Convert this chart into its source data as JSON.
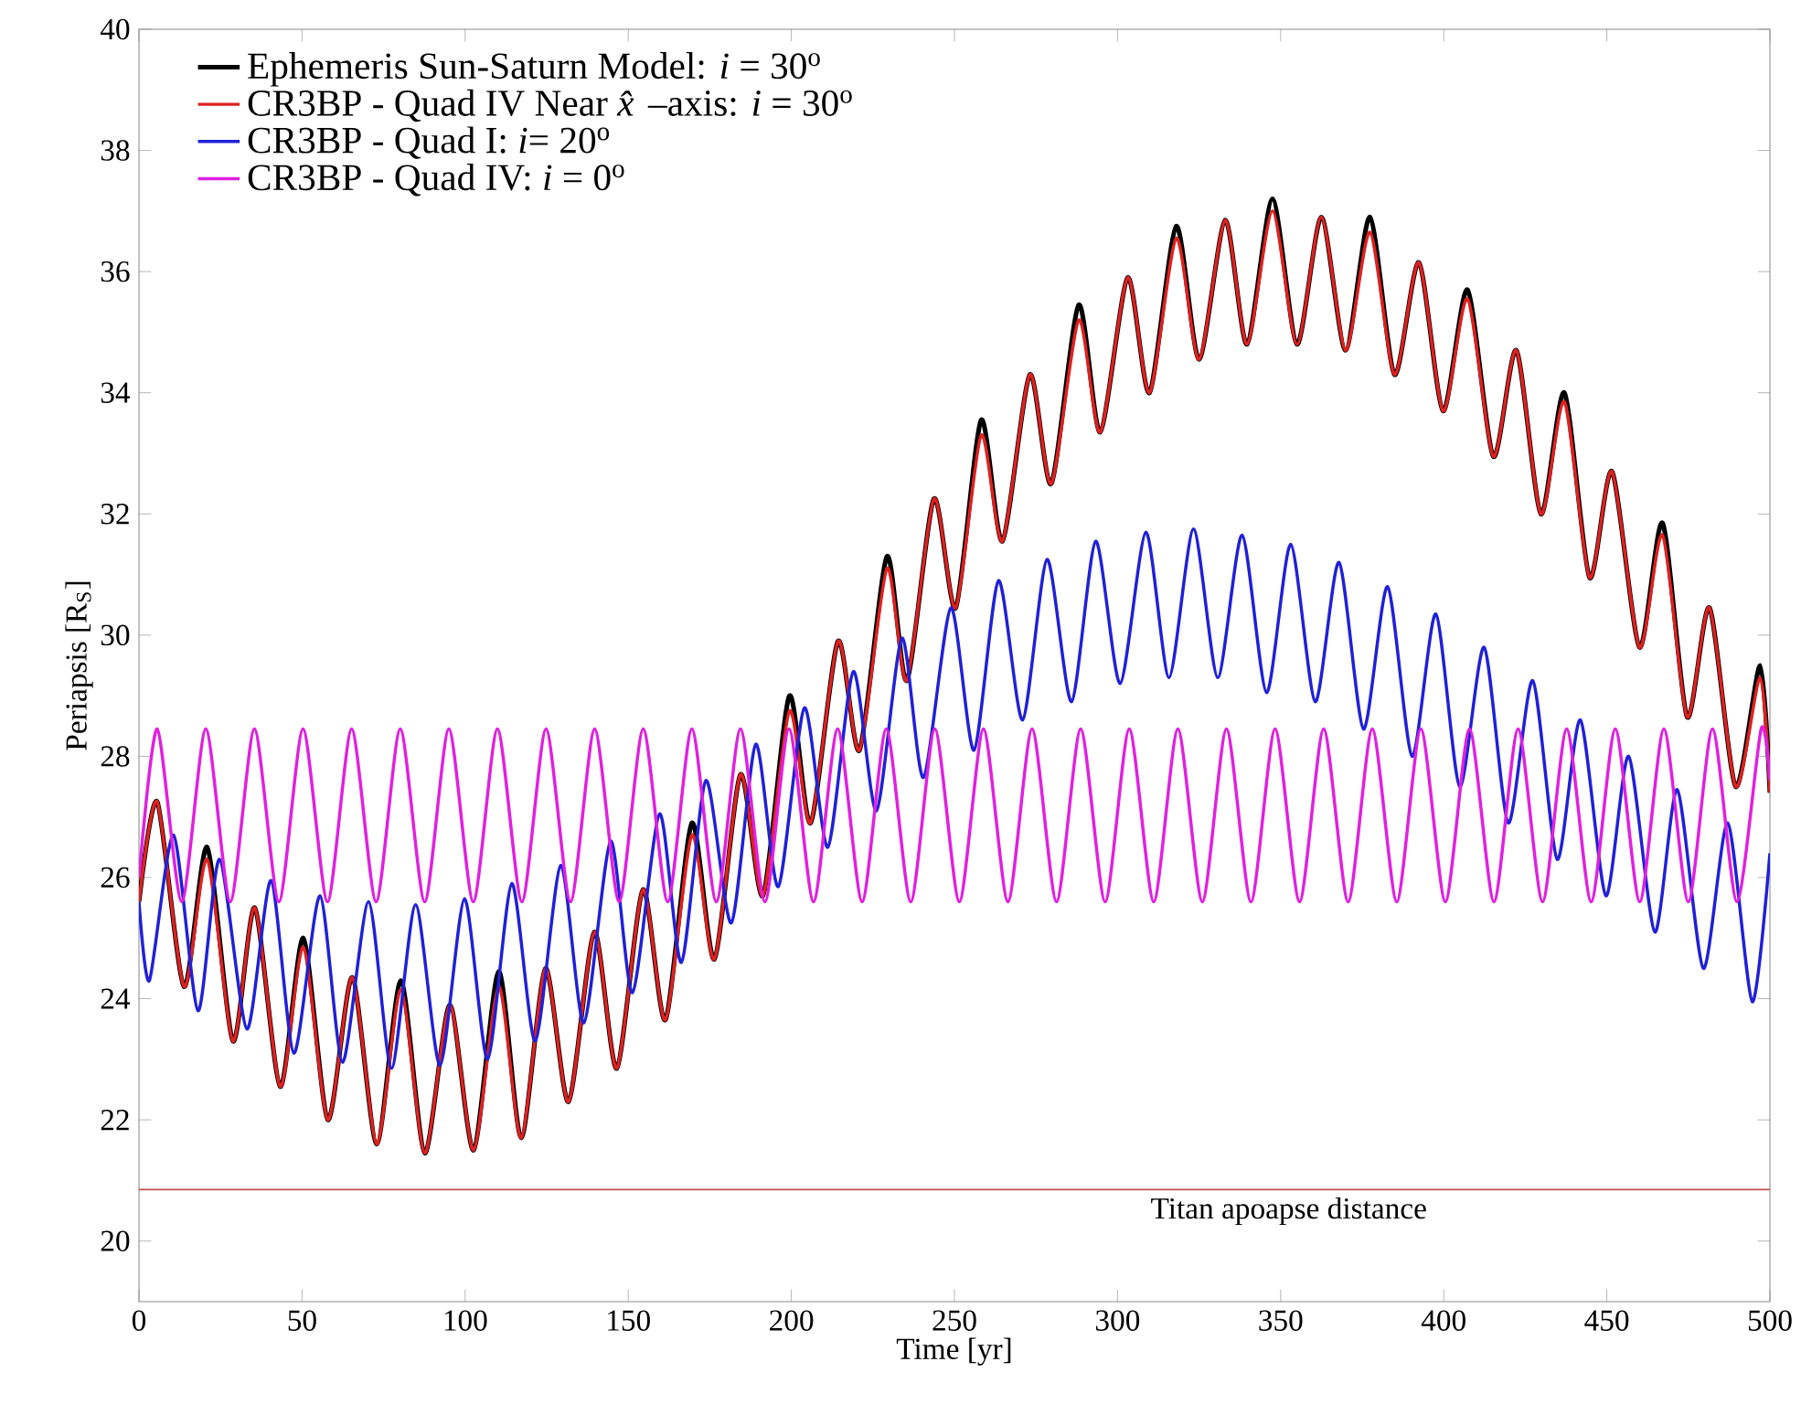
{
  "chart_data": {
    "type": "line",
    "xlabel": "Time [yr]",
    "ylabel": "Periapsis [R$_{S}$]",
    "xlim": [
      0,
      500
    ],
    "ylim": [
      19,
      40
    ],
    "xticks": [
      0,
      50,
      100,
      150,
      200,
      250,
      300,
      350,
      400,
      450,
      500
    ],
    "yticks": [
      20,
      22,
      24,
      26,
      28,
      30,
      32,
      34,
      36,
      38,
      40
    ],
    "legend": "top left",
    "ref_lines": [
      {
        "axis": "y",
        "value": 20.85,
        "label": "Titan apoapse distance",
        "color": "#c05050"
      }
    ],
    "series": [
      {
        "name": "Ephemeris Sun-Saturn Model: *i* = 30$^{o}$",
        "color": "#000000",
        "x": [
          0,
          5.6,
          13.8,
          20.9,
          28.8,
          35.5,
          43.3,
          50.4,
          57.9,
          65.4,
          72.9,
          80.3,
          87.6,
          95.3,
          102.6,
          110.3,
          117.2,
          124.6,
          131.7,
          139.6,
          146.5,
          154.5,
          161.4,
          169.5,
          176.4,
          184.4,
          191.3,
          199.4,
          205.9,
          214.3,
          220.9,
          229.3,
          235.4,
          243.7,
          250.4,
          258.2,
          264.7,
          273.1,
          279.7,
          288.1,
          294.7,
          303.1,
          309.8,
          318.0,
          325.0,
          333.0,
          339.7,
          347.5,
          355.0,
          362.5,
          369.9,
          377.4,
          384.9,
          392.4,
          399.8,
          407.3,
          415.2,
          422.3,
          429.8,
          437.0,
          444.7,
          451.6,
          460.0,
          467.1,
          474.6,
          481.5,
          489.5,
          497.0,
          500
        ],
        "values": [
          25.6,
          27.25,
          24.2,
          26.5,
          23.3,
          25.5,
          22.55,
          25.0,
          22.0,
          24.35,
          21.6,
          24.3,
          21.45,
          23.9,
          21.5,
          24.45,
          21.7,
          24.5,
          22.3,
          25.1,
          22.85,
          25.8,
          23.65,
          26.9,
          24.65,
          27.7,
          25.7,
          29.0,
          26.9,
          29.9,
          28.1,
          31.3,
          29.25,
          32.25,
          30.45,
          33.55,
          31.55,
          34.3,
          32.5,
          35.45,
          33.35,
          35.9,
          34.0,
          36.75,
          34.55,
          36.85,
          34.8,
          37.2,
          34.8,
          36.9,
          34.7,
          36.9,
          34.3,
          36.15,
          33.7,
          35.7,
          32.95,
          34.7,
          32.0,
          34.0,
          30.95,
          32.7,
          29.8,
          31.85,
          28.65,
          30.45,
          27.5,
          29.5,
          27.4
        ]
      },
      {
        "name": "CR3BP - Quad IV Near *x̂*–axis: *i* = 30$^{o}$",
        "color": "#e02020",
        "x": [
          0,
          5.6,
          13.8,
          20.9,
          28.8,
          35.5,
          43.3,
          50.4,
          57.9,
          65.4,
          72.9,
          80.3,
          87.6,
          95.3,
          102.6,
          110.3,
          117.2,
          124.6,
          131.7,
          139.6,
          146.5,
          154.5,
          161.4,
          169.5,
          176.4,
          184.4,
          191.3,
          199.4,
          205.9,
          214.3,
          220.9,
          229.3,
          235.4,
          243.7,
          250.4,
          258.2,
          264.7,
          273.1,
          279.7,
          288.1,
          294.7,
          303.1,
          309.8,
          318.0,
          325.0,
          333.0,
          339.7,
          347.5,
          355.0,
          362.5,
          369.9,
          377.4,
          384.9,
          392.4,
          399.8,
          407.3,
          415.2,
          422.3,
          429.8,
          437.0,
          444.7,
          451.6,
          460.0,
          467.1,
          474.6,
          481.5,
          489.5,
          497.0,
          500
        ],
        "values": [
          25.6,
          27.25,
          24.2,
          26.3,
          23.3,
          25.5,
          22.55,
          24.85,
          22.0,
          24.35,
          21.6,
          24.15,
          21.45,
          23.9,
          21.5,
          24.2,
          21.7,
          24.5,
          22.3,
          25.1,
          22.85,
          25.8,
          23.65,
          26.7,
          24.65,
          27.7,
          25.7,
          28.75,
          26.9,
          29.9,
          28.1,
          31.1,
          29.25,
          32.25,
          30.45,
          33.3,
          31.55,
          34.3,
          32.5,
          35.2,
          33.35,
          35.9,
          34.0,
          36.55,
          34.55,
          36.85,
          34.8,
          37.0,
          34.8,
          36.9,
          34.7,
          36.65,
          34.3,
          36.15,
          33.7,
          35.55,
          32.95,
          34.7,
          32.0,
          33.85,
          30.95,
          32.7,
          29.8,
          31.65,
          28.65,
          30.45,
          27.5,
          29.3,
          27.4
        ]
      },
      {
        "name": "CR3BP - Quad I: *i*= 20$^{o}$",
        "color": "#2020d8",
        "x": [
          0,
          3.2,
          10.6,
          18.1,
          24.7,
          33.1,
          40.5,
          47.5,
          55.5,
          62.4,
          70.4,
          77.4,
          84.8,
          92.3,
          99.8,
          106.9,
          114.3,
          121.5,
          129.3,
          136.4,
          144.6,
          151.3,
          159.6,
          166.3,
          173.8,
          181.6,
          189.1,
          196.0,
          204.0,
          211.2,
          219.0,
          226.1,
          233.9,
          240.5,
          248.9,
          256.0,
          263.5,
          270.9,
          278.4,
          285.9,
          293.3,
          300.8,
          308.7,
          315.8,
          323.3,
          330.7,
          338.2,
          345.7,
          353.1,
          360.6,
          367.9,
          375.4,
          382.8,
          390.3,
          397.6,
          404.9,
          412.4,
          419.8,
          427.3,
          434.8,
          441.9,
          449.7,
          456.7,
          464.7,
          471.6,
          479.6,
          487.1,
          494.6,
          500
        ],
        "values": [
          25.6,
          24.3,
          26.7,
          23.8,
          26.3,
          23.5,
          25.95,
          23.1,
          25.7,
          22.95,
          25.6,
          22.85,
          25.55,
          22.9,
          25.65,
          23.0,
          25.9,
          23.3,
          26.2,
          23.6,
          26.6,
          24.1,
          27.05,
          24.6,
          27.6,
          25.25,
          28.2,
          25.85,
          28.8,
          26.5,
          29.4,
          27.1,
          29.95,
          27.65,
          30.45,
          28.1,
          30.9,
          28.6,
          31.25,
          28.9,
          31.55,
          29.2,
          31.7,
          29.3,
          31.75,
          29.3,
          31.65,
          29.05,
          31.5,
          28.9,
          31.2,
          28.45,
          30.8,
          28.0,
          30.35,
          27.5,
          29.8,
          26.9,
          29.25,
          26.3,
          28.6,
          25.7,
          28.0,
          25.1,
          27.45,
          24.5,
          26.9,
          23.95,
          26.4
        ]
      },
      {
        "name": "CR3BP - Quad IV: *i* = 0$^{o}$",
        "color": "#e020e0",
        "x": [
          0,
          5.6,
          13.1,
          20.5,
          28.0,
          35.4,
          42.9,
          50.3,
          57.8,
          65.2,
          72.7,
          80.1,
          87.6,
          95.0,
          102.5,
          109.9,
          117.4,
          124.8,
          132.3,
          139.7,
          147.2,
          154.6,
          162.1,
          169.5,
          177.0,
          184.4,
          191.9,
          199.3,
          206.8,
          214.2,
          221.7,
          229.1,
          236.6,
          244.0,
          251.5,
          258.9,
          266.4,
          273.8,
          281.3,
          288.7,
          296.2,
          303.6,
          311.1,
          318.5,
          326.0,
          333.4,
          340.9,
          348.3,
          355.8,
          363.2,
          370.7,
          378.1,
          385.6,
          393.0,
          400.5,
          407.9,
          415.4,
          422.8,
          430.3,
          437.7,
          445.2,
          452.6,
          460.1,
          467.5,
          475.0,
          482.4,
          489.9,
          497.3,
          500
        ],
        "values": [
          26.0,
          28.45,
          25.6,
          28.45,
          25.6,
          28.45,
          25.6,
          28.45,
          25.6,
          28.45,
          25.6,
          28.45,
          25.6,
          28.45,
          25.6,
          28.45,
          25.6,
          28.45,
          25.6,
          28.45,
          25.6,
          28.45,
          25.6,
          28.45,
          25.6,
          28.45,
          25.6,
          28.45,
          25.6,
          28.45,
          25.6,
          28.45,
          25.6,
          28.45,
          25.6,
          28.45,
          25.6,
          28.45,
          25.6,
          28.45,
          25.6,
          28.45,
          25.6,
          28.45,
          25.6,
          28.45,
          25.6,
          28.45,
          25.6,
          28.45,
          25.6,
          28.45,
          25.6,
          28.45,
          25.6,
          28.45,
          25.6,
          28.45,
          25.6,
          28.45,
          25.6,
          28.45,
          25.6,
          28.45,
          25.6,
          28.45,
          25.6,
          28.45,
          27.6
        ]
      }
    ]
  }
}
